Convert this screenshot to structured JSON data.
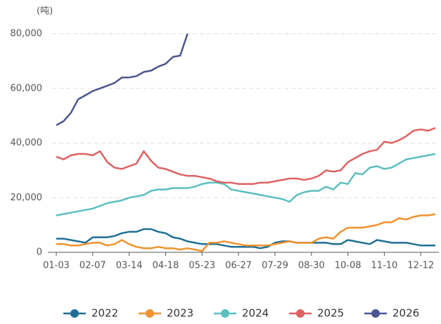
{
  "chart_data": {
    "type": "line",
    "y_label": "(吨)",
    "categories": [
      "01-03",
      null,
      null,
      null,
      null,
      "02-07",
      null,
      null,
      null,
      null,
      "03-14",
      null,
      null,
      null,
      null,
      "04-18",
      null,
      null,
      null,
      null,
      "05-23",
      null,
      null,
      null,
      null,
      "06-27",
      null,
      null,
      null,
      null,
      "07-29",
      null,
      null,
      null,
      null,
      "08-30",
      null,
      null,
      null,
      null,
      "10-08",
      null,
      null,
      null,
      null,
      "11-10",
      null,
      null,
      null,
      null,
      "12-12",
      null,
      null
    ],
    "ylim": [
      0,
      80000
    ],
    "yticks": [
      0,
      {
        "value": 20000,
        "label": "20,000"
      },
      {
        "value": 40000,
        "label": "40,000"
      },
      {
        "value": 60000,
        "label": "60,000"
      },
      {
        "value": 80000,
        "label": "80,000"
      }
    ],
    "grid": true,
    "legend": "bottom",
    "series": [
      {
        "name": "2022",
        "color": "#1f6f94",
        "values": [
          5000,
          5000,
          4500,
          4000,
          3500,
          5500,
          5500,
          5500,
          6000,
          7000,
          7500,
          7500,
          8500,
          8500,
          7500,
          7000,
          5500,
          5000,
          4000,
          3500,
          3000,
          3000,
          3000,
          2500,
          2000,
          2000,
          2000,
          2000,
          1500,
          2000,
          3500,
          4000,
          4000,
          3500,
          3500,
          3500,
          3500,
          3500,
          3000,
          3000,
          4500,
          4000,
          3500,
          3000,
          4500,
          4000,
          3500,
          3500,
          3500,
          3000,
          2500,
          2500,
          2500
        ]
      },
      {
        "name": "2023",
        "color": "#f0922d",
        "values": [
          3000,
          3000,
          2500,
          2500,
          3000,
          3500,
          3500,
          2500,
          3000,
          4500,
          3000,
          2000,
          1500,
          1500,
          2000,
          1500,
          1500,
          1000,
          1500,
          1000,
          500,
          3500,
          3500,
          4000,
          3500,
          3000,
          2500,
          2500,
          2500,
          2500,
          3000,
          3500,
          4000,
          3500,
          3500,
          3500,
          5000,
          5500,
          5000,
          7500,
          9000,
          9000,
          9000,
          9500,
          10000,
          11000,
          11000,
          12500,
          12000,
          13000,
          13500,
          13500,
          14000
        ]
      },
      {
        "name": "2024",
        "color": "#5cbfbf",
        "values": [
          13500,
          14000,
          14500,
          15000,
          15500,
          16000,
          17000,
          18000,
          18500,
          19000,
          20000,
          20500,
          21000,
          22500,
          23000,
          23000,
          23500,
          23500,
          23500,
          24000,
          25000,
          25500,
          25500,
          25000,
          23000,
          22500,
          22000,
          21500,
          21000,
          20500,
          20000,
          19500,
          18500,
          21000,
          22000,
          22500,
          22500,
          24000,
          23000,
          25500,
          25000,
          29000,
          28500,
          31000,
          31500,
          30500,
          31000,
          32500,
          34000,
          34500,
          35000,
          35500,
          36000
        ]
      },
      {
        "name": "2025",
        "color": "#dd6262",
        "values": [
          35000,
          34000,
          35500,
          36000,
          36000,
          35500,
          37000,
          33000,
          31000,
          30500,
          31500,
          32500,
          37000,
          33500,
          31000,
          30500,
          29500,
          28500,
          28000,
          28000,
          27500,
          27000,
          26000,
          25500,
          25500,
          25000,
          25000,
          25000,
          25500,
          25500,
          26000,
          26500,
          27000,
          27000,
          26500,
          27000,
          28000,
          30000,
          29500,
          30000,
          33000,
          34500,
          36000,
          37000,
          37500,
          40500,
          40000,
          41000,
          42500,
          44500,
          45000,
          44500,
          45500
        ]
      },
      {
        "name": "2026",
        "color": "#4a5591",
        "values": [
          46500,
          48000,
          51000,
          56000,
          57500,
          59000,
          60000,
          61000,
          62000,
          64000,
          64000,
          64500,
          66000,
          66500,
          68000,
          69000,
          71500,
          72000,
          80000,
          null,
          null,
          null,
          null,
          null,
          null,
          null,
          null,
          null,
          null,
          null,
          null,
          null,
          null,
          null,
          null,
          null,
          null,
          null,
          null,
          null,
          null,
          null,
          null,
          null,
          null,
          null,
          null,
          null,
          null,
          null,
          null,
          null,
          null
        ]
      }
    ]
  }
}
